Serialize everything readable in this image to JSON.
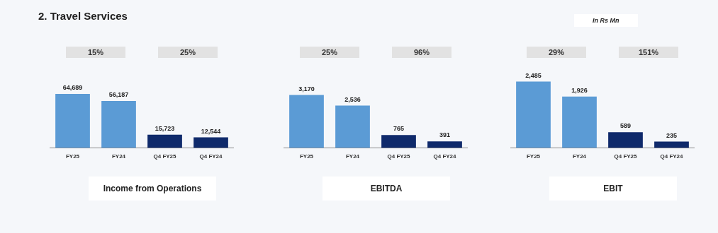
{
  "chart_data": [
    {
      "type": "bar",
      "title": "Income from Operations",
      "annotations": [
        "2. Travel Services",
        "15%",
        "25%"
      ],
      "categories": [
        "FY25",
        "FY24",
        "Q4 FY25",
        "Q4 FY24"
      ],
      "values": [
        64689,
        56187,
        15723,
        12544
      ],
      "value_labels": [
        "64,689",
        "56,187",
        "15,723",
        "12,544"
      ],
      "colors": [
        "#5b9bd5",
        "#5b9bd5",
        "#0f2a6b",
        "#0f2a6b"
      ],
      "tick_labels": "x",
      "grid": false,
      "legend": false
    },
    {
      "type": "bar",
      "title": "EBITDA",
      "annotations": [
        "25%",
        "96%"
      ],
      "categories": [
        "FY25",
        "FY24",
        "Q4 FY25",
        "Q4 FY24"
      ],
      "values": [
        3170,
        2536,
        765,
        391
      ],
      "value_labels": [
        "3,170",
        "2,536",
        "765",
        "391"
      ],
      "colors": [
        "#5b9bd5",
        "#5b9bd5",
        "#0f2a6b",
        "#0f2a6b"
      ],
      "tick_labels": "x",
      "grid": false,
      "legend": false
    },
    {
      "type": "bar",
      "title": "EBIT",
      "annotations": [
        "In Rs Mn",
        "29%",
        "151%"
      ],
      "categories": [
        "FY25",
        "FY24",
        "Q4 FY25",
        "Q4 FY24"
      ],
      "values": [
        2485,
        1926,
        589,
        235
      ],
      "value_labels": [
        "2,485",
        "1,926",
        "589",
        "235"
      ],
      "colors": [
        "#5b9bd5",
        "#5b9bd5",
        "#0f2a6b",
        "#0f2a6b"
      ],
      "tick_labels": "x",
      "grid": false,
      "legend": false
    }
  ]
}
